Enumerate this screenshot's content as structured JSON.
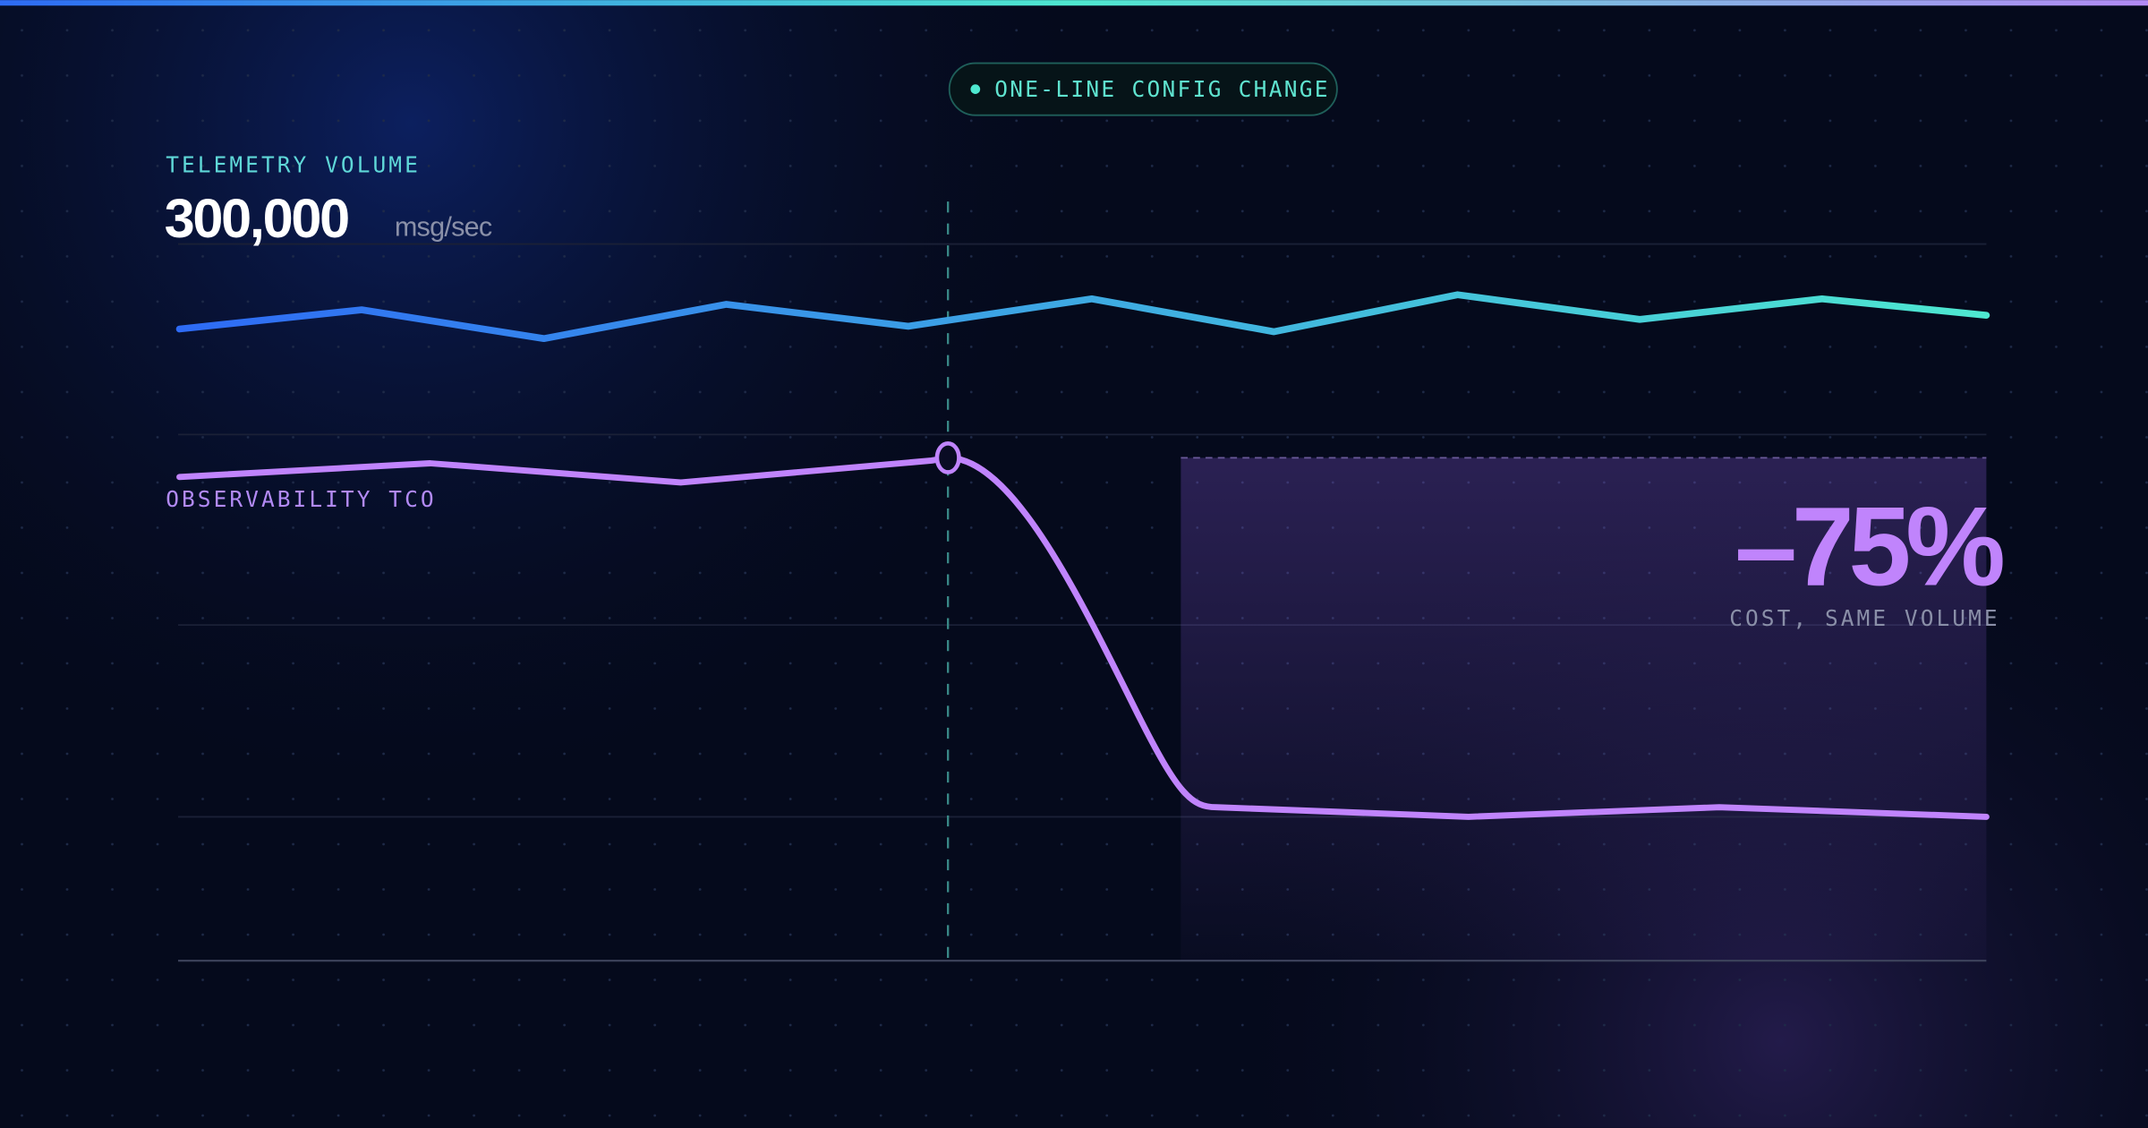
{
  "badge": {
    "label": "ONE-LINE CONFIG CHANGE"
  },
  "telemetry": {
    "label": "TELEMETRY VOLUME",
    "value": "300,000",
    "unit": "msg/sec"
  },
  "tco": {
    "label": "OBSERVABILITY TCO"
  },
  "stat": {
    "value": "–75%",
    "caption": "COST, SAME VOLUME"
  }
}
